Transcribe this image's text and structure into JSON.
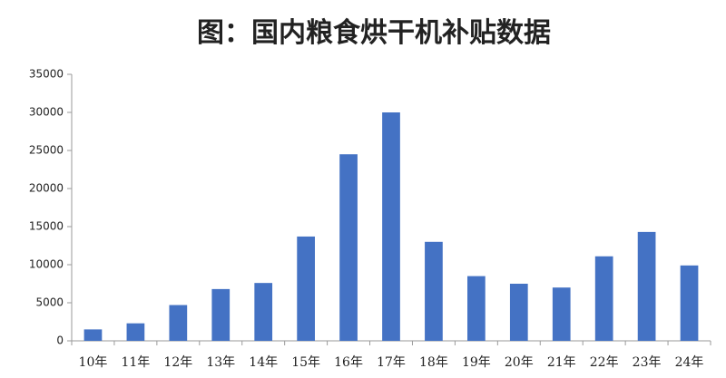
{
  "chart_data": {
    "type": "bar",
    "title": "图：国内粮食烘干机补贴数据",
    "categories": [
      "10年",
      "11年",
      "12年",
      "13年",
      "14年",
      "15年",
      "16年",
      "17年",
      "18年",
      "19年",
      "20年",
      "21年",
      "22年",
      "23年",
      "24年"
    ],
    "values": [
      1500,
      2300,
      4700,
      6800,
      7600,
      13700,
      24500,
      30000,
      13000,
      8500,
      7500,
      7000,
      11100,
      14300,
      9900
    ],
    "color": "#4472c4",
    "ylim": [
      0,
      35000
    ],
    "yticks": [
      0,
      5000,
      10000,
      15000,
      20000,
      25000,
      30000,
      35000
    ],
    "grid": false
  }
}
